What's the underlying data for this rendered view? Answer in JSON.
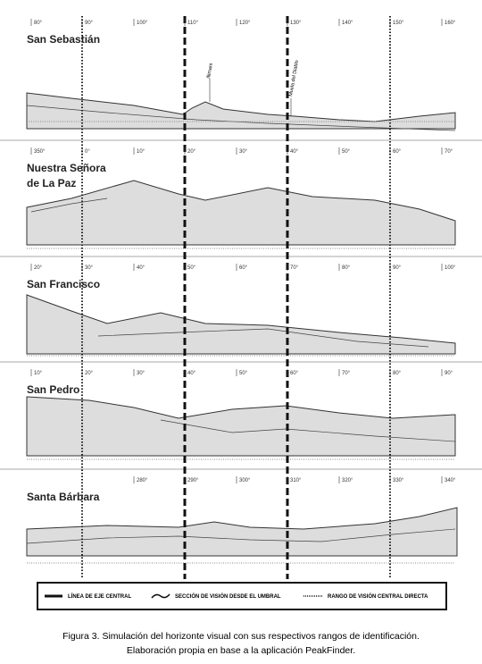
{
  "panels": [
    {
      "name": [
        "San Sebastián"
      ],
      "degrees": [
        "80°",
        "90°",
        "100°",
        "110°",
        "120°",
        "130°",
        "140°",
        "150°",
        "160°"
      ],
      "peaks": [
        "Illimani",
        "Muela del Diablo"
      ]
    },
    {
      "name": [
        "Nuestra Señora",
        "de La Paz"
      ],
      "degrees": [
        "350°",
        "0°",
        "10°",
        "20°",
        "30°",
        "40°",
        "50°",
        "60°",
        "70°"
      ]
    },
    {
      "name": [
        "San Francisco"
      ],
      "degrees": [
        "20°",
        "30°",
        "40°",
        "50°",
        "60°",
        "70°",
        "80°",
        "90°",
        "100°"
      ]
    },
    {
      "name": [
        "San Pedro"
      ],
      "degrees": [
        "10°",
        "20°",
        "30°",
        "40°",
        "50°",
        "60°",
        "70°",
        "80°",
        "90°"
      ]
    },
    {
      "name": [
        "Santa Bárbara"
      ],
      "degrees": [
        "280°",
        "290°",
        "300°",
        "310°",
        "320°",
        "330°",
        "340°"
      ]
    }
  ],
  "legend": [
    "LÍNEA DE EJE CENTRAL",
    "SECCIÓN DE VISIÓN DESDE EL UMBRAL",
    "RANGO DE VISIÓN CENTRAL DIRECTA"
  ],
  "caption": [
    "Figura 3. Simulación del horizonte visual con sus respectivos rangos de identificación.",
    "Elaboración propia en base a la aplicación PeakFinder."
  ]
}
